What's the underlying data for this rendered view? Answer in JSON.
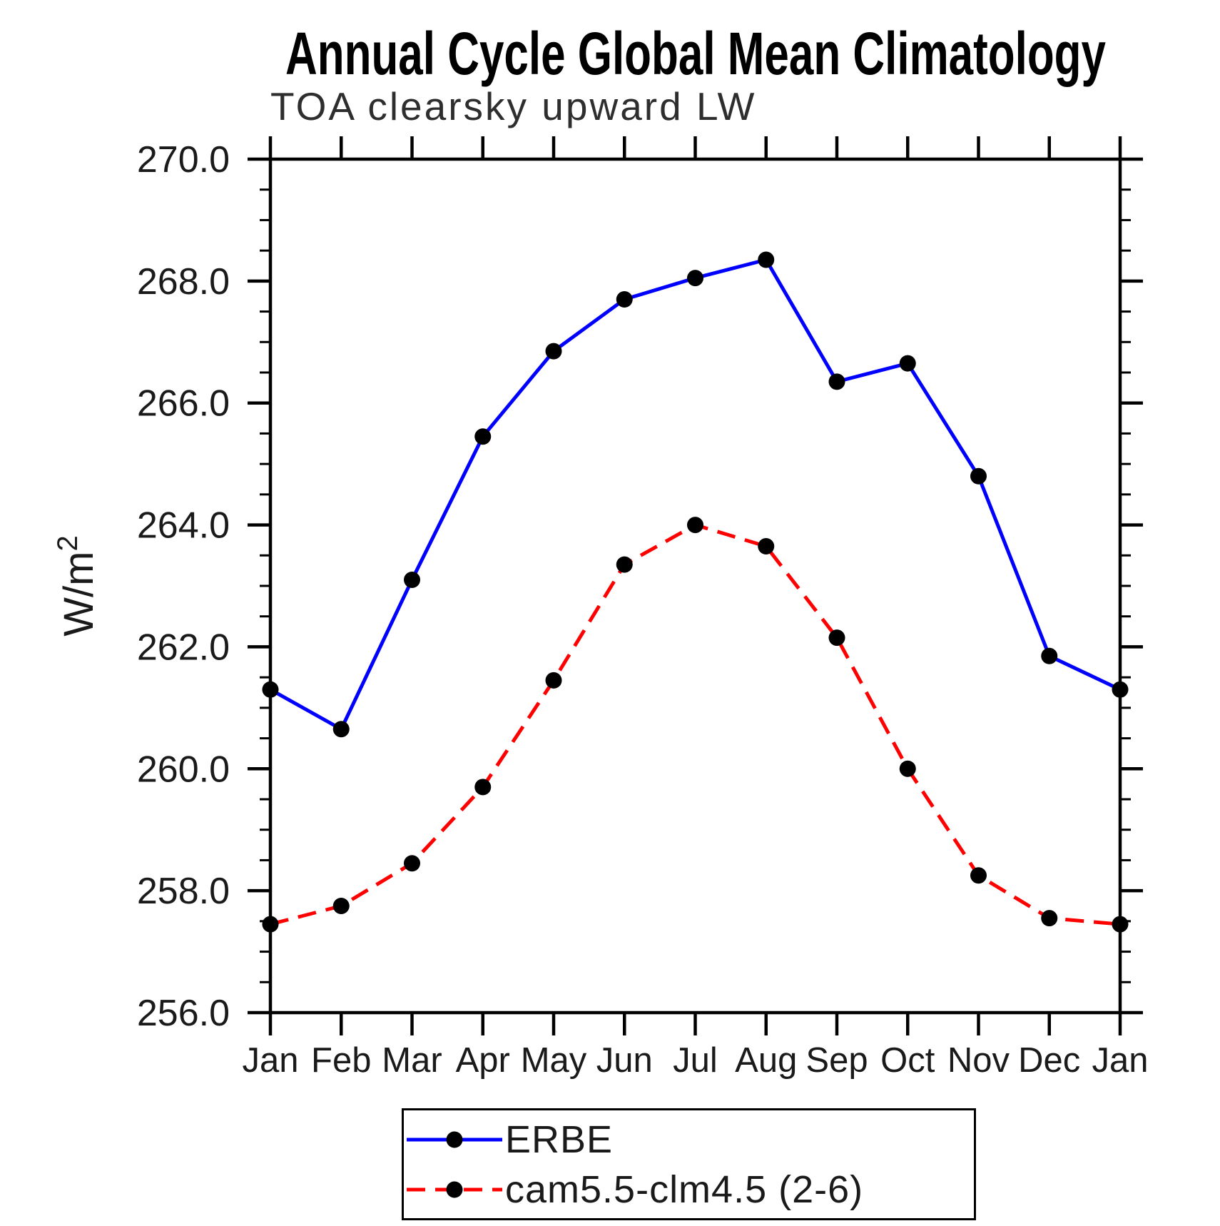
{
  "page": {
    "background": "#ffffff",
    "axis_color": "#000000"
  },
  "chart_data": {
    "type": "line",
    "title": "Annual Cycle Global Mean Climatology",
    "subtitle": "TOA clearsky upward LW",
    "ylabel_base": "W/m",
    "ylabel_exponent": "2",
    "x_tick_labels": [
      "Jan",
      "Feb",
      "Mar",
      "Apr",
      "May",
      "Jun",
      "Jul",
      "Aug",
      "Sep",
      "Oct",
      "Nov",
      "Dec",
      "Jan"
    ],
    "ylim": [
      256.0,
      270.0
    ],
    "y_major_tick_step": 2.0,
    "y_minor_tick_step": 0.5,
    "y_tick_labels": [
      "256.0",
      "258.0",
      "260.0",
      "262.0",
      "264.0",
      "266.0",
      "268.0",
      "270.0"
    ],
    "grid": false,
    "legend_position": "bottom-center",
    "series": [
      {
        "name": "ERBE",
        "color": "#0000ff",
        "line_style": "solid",
        "marker": "circle",
        "marker_color": "#000000",
        "values": [
          261.3,
          260.65,
          263.1,
          265.45,
          266.85,
          267.7,
          268.05,
          268.35,
          266.35,
          266.65,
          264.8,
          261.85,
          261.3
        ]
      },
      {
        "name": "cam5.5-clm4.5 (2-6)",
        "color": "#ff0000",
        "line_style": "dashed",
        "marker": "circle",
        "marker_color": "#000000",
        "values": [
          257.45,
          257.75,
          258.45,
          259.7,
          261.45,
          263.35,
          264.0,
          263.65,
          262.15,
          260.0,
          258.25,
          257.55,
          257.45
        ]
      }
    ]
  }
}
